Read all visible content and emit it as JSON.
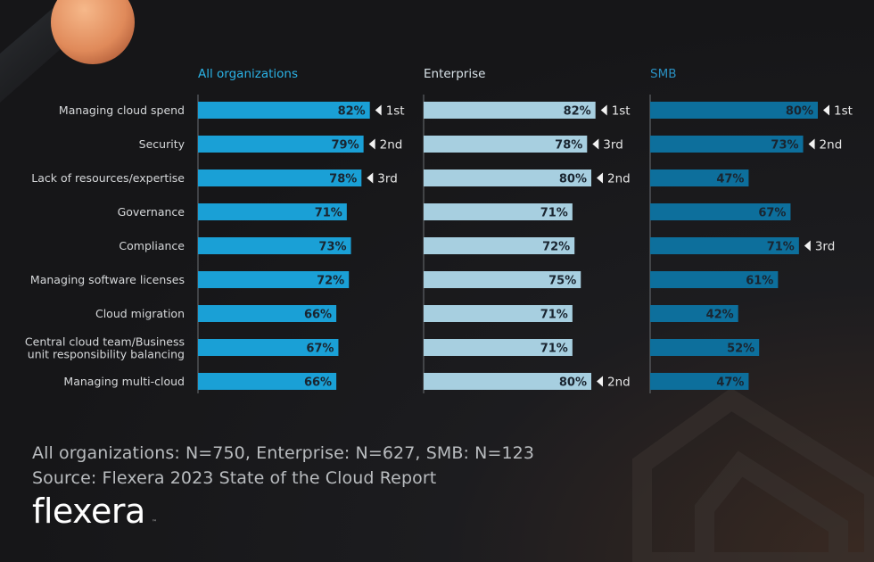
{
  "colors": {
    "all": "#1aa0d6",
    "enterprise": "#a7cfe0",
    "smb": "#0d6f9c",
    "header_all": "#2bb3e6",
    "header_enterprise": "#d8e2e8",
    "header_smb": "#2a8fc0"
  },
  "chart_data": {
    "type": "bar",
    "orientation": "horizontal",
    "categories": [
      "Managing cloud spend",
      "Security",
      "Lack of resources/expertise",
      "Governance",
      "Compliance",
      "Managing software licenses",
      "Cloud migration",
      "Central cloud team/Business unit responsibility balancing",
      "Managing multi-cloud"
    ],
    "series": [
      {
        "name": "All organizations",
        "values": [
          82,
          79,
          78,
          71,
          73,
          72,
          66,
          67,
          66
        ],
        "ranks": [
          "1st",
          "2nd",
          "3rd",
          "",
          "",
          "",
          "",
          "",
          ""
        ]
      },
      {
        "name": "Enterprise",
        "values": [
          82,
          78,
          80,
          71,
          72,
          75,
          71,
          71,
          80
        ],
        "ranks": [
          "1st",
          "3rd",
          "2nd",
          "",
          "",
          "",
          "",
          "",
          "2nd"
        ]
      },
      {
        "name": "SMB",
        "values": [
          80,
          73,
          47,
          67,
          71,
          61,
          42,
          52,
          47
        ],
        "ranks": [
          "1st",
          "2nd",
          "",
          "",
          "3rd",
          "",
          "",
          "",
          ""
        ]
      }
    ],
    "value_suffix": "%",
    "xlim": [
      0,
      100
    ]
  },
  "footer": {
    "n_line": "All organizations: N=750, Enterprise: N=627, SMB: N=123",
    "source": "Source: Flexera 2023 State of the Cloud Report"
  },
  "logo": {
    "text": "flexera",
    "tm": "™"
  }
}
